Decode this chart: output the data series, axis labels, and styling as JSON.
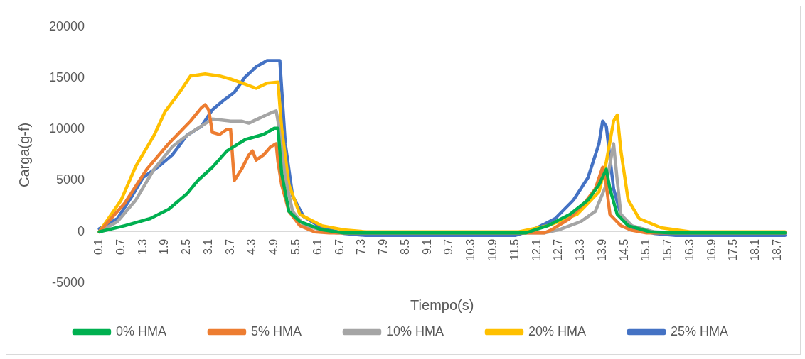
{
  "chart_data": {
    "type": "line",
    "xlabel": "Tiempo(s)",
    "ylabel": "Carga(g-f)",
    "xlim": [
      0.05,
      18.95
    ],
    "ylim": [
      -5000,
      20000
    ],
    "yticks": [
      -5000,
      0,
      5000,
      10000,
      15000,
      20000
    ],
    "xticks": [
      0.1,
      0.7,
      1.3,
      1.9,
      2.5,
      3.1,
      3.7,
      4.3,
      4.9,
      5.5,
      6.1,
      6.7,
      7.3,
      7.9,
      8.5,
      9.1,
      9.7,
      10.3,
      10.9,
      11.5,
      12.1,
      12.7,
      13.3,
      13.9,
      14.5,
      15.1,
      15.7,
      16.3,
      16.9,
      17.5,
      18.1,
      18.7
    ],
    "grid": false,
    "legend": "bottom",
    "marker": "none",
    "line_style": "solid",
    "series": [
      {
        "name": "0% HMA",
        "color": "#00b050",
        "x": [
          0.1,
          0.8,
          1.5,
          2.0,
          2.5,
          2.8,
          3.2,
          3.6,
          4.1,
          4.6,
          4.9,
          5.0,
          5.1,
          5.3,
          5.6,
          6.2,
          6.8,
          11.8,
          12.4,
          13.0,
          13.5,
          13.8,
          14.0,
          14.1,
          14.3,
          14.6,
          15.2,
          15.8,
          18.9
        ],
        "values": [
          0,
          600,
          1300,
          2200,
          3700,
          5000,
          6300,
          7900,
          9000,
          9500,
          10100,
          10100,
          5700,
          2000,
          1000,
          200,
          -100,
          -100,
          600,
          1700,
          3100,
          4600,
          6100,
          4200,
          1700,
          600,
          0,
          -100,
          -100
        ]
      },
      {
        "name": "5% HMA",
        "color": "#ed7d31",
        "x": [
          0.1,
          0.8,
          1.4,
          2.0,
          2.6,
          2.9,
          3.0,
          3.1,
          3.2,
          3.4,
          3.6,
          3.7,
          3.8,
          4.0,
          4.2,
          4.3,
          4.4,
          4.6,
          4.8,
          4.95,
          5.0,
          5.1,
          5.3,
          5.6,
          6.0,
          6.4,
          12.3,
          12.5,
          13.0,
          13.4,
          13.7,
          13.9,
          14.0,
          14.1,
          14.4,
          14.7,
          15.1,
          18.9
        ],
        "values": [
          0,
          2800,
          6100,
          8600,
          10800,
          12100,
          12400,
          11900,
          9700,
          9500,
          10000,
          10000,
          5000,
          6100,
          7500,
          7900,
          7000,
          7500,
          8300,
          8600,
          6800,
          4600,
          2000,
          600,
          0,
          -100,
          -100,
          200,
          1300,
          2800,
          4200,
          6300,
          4600,
          1700,
          600,
          150,
          -100,
          -100
        ]
      },
      {
        "name": "10% HMA",
        "color": "#a5a5a5",
        "x": [
          0.1,
          0.6,
          1.1,
          1.6,
          2.1,
          2.5,
          2.8,
          3.2,
          3.7,
          4.0,
          4.2,
          4.5,
          4.8,
          4.95,
          5.0,
          5.2,
          5.4,
          5.7,
          6.2,
          6.6,
          12.3,
          12.7,
          13.3,
          13.7,
          14.0,
          14.2,
          14.3,
          14.4,
          14.7,
          15.3,
          15.9,
          18.9
        ],
        "values": [
          0,
          1000,
          3100,
          6100,
          8300,
          9400,
          10100,
          11000,
          10800,
          10800,
          10600,
          11100,
          11600,
          11800,
          10800,
          5300,
          2000,
          700,
          150,
          -100,
          -100,
          200,
          1000,
          2000,
          4600,
          8600,
          5000,
          1700,
          600,
          0,
          -100,
          -100
        ]
      },
      {
        "name": "20% HMA",
        "color": "#ffc000",
        "x": [
          0.1,
          0.7,
          1.1,
          1.6,
          1.9,
          2.3,
          2.6,
          3.0,
          3.4,
          3.7,
          4.1,
          4.4,
          4.7,
          5.0,
          5.1,
          5.3,
          5.6,
          6.2,
          6.8,
          7.4,
          11.6,
          12.4,
          13.2,
          13.8,
          14.0,
          14.2,
          14.3,
          14.4,
          14.6,
          14.9,
          15.5,
          16.3,
          18.9
        ],
        "values": [
          0,
          3100,
          6400,
          9400,
          11700,
          13600,
          15200,
          15400,
          15200,
          14900,
          14400,
          14000,
          14500,
          14600,
          10100,
          4600,
          1700,
          600,
          200,
          0,
          0,
          600,
          1700,
          3900,
          6800,
          10800,
          11400,
          7900,
          3100,
          1300,
          400,
          0,
          0
        ]
      },
      {
        "name": "25% HMA",
        "color": "#4472c4",
        "x": [
          0.1,
          0.6,
          1.0,
          1.3,
          1.7,
          2.1,
          2.5,
          2.9,
          3.2,
          3.5,
          3.8,
          4.1,
          4.4,
          4.7,
          5.05,
          5.2,
          5.4,
          5.7,
          6.2,
          6.8,
          7.4,
          11.5,
          12.0,
          12.6,
          13.1,
          13.5,
          13.8,
          13.9,
          14.0,
          14.2,
          14.4,
          14.7,
          15.3,
          15.9,
          18.9
        ],
        "values": [
          300,
          1300,
          3500,
          5300,
          6300,
          7500,
          9400,
          10300,
          11900,
          12800,
          13600,
          15100,
          16100,
          16700,
          16700,
          8600,
          3500,
          1500,
          400,
          -150,
          -350,
          -350,
          200,
          1300,
          3100,
          5300,
          8600,
          10800,
          10300,
          4200,
          1700,
          400,
          -150,
          -350,
          -350
        ]
      }
    ]
  }
}
